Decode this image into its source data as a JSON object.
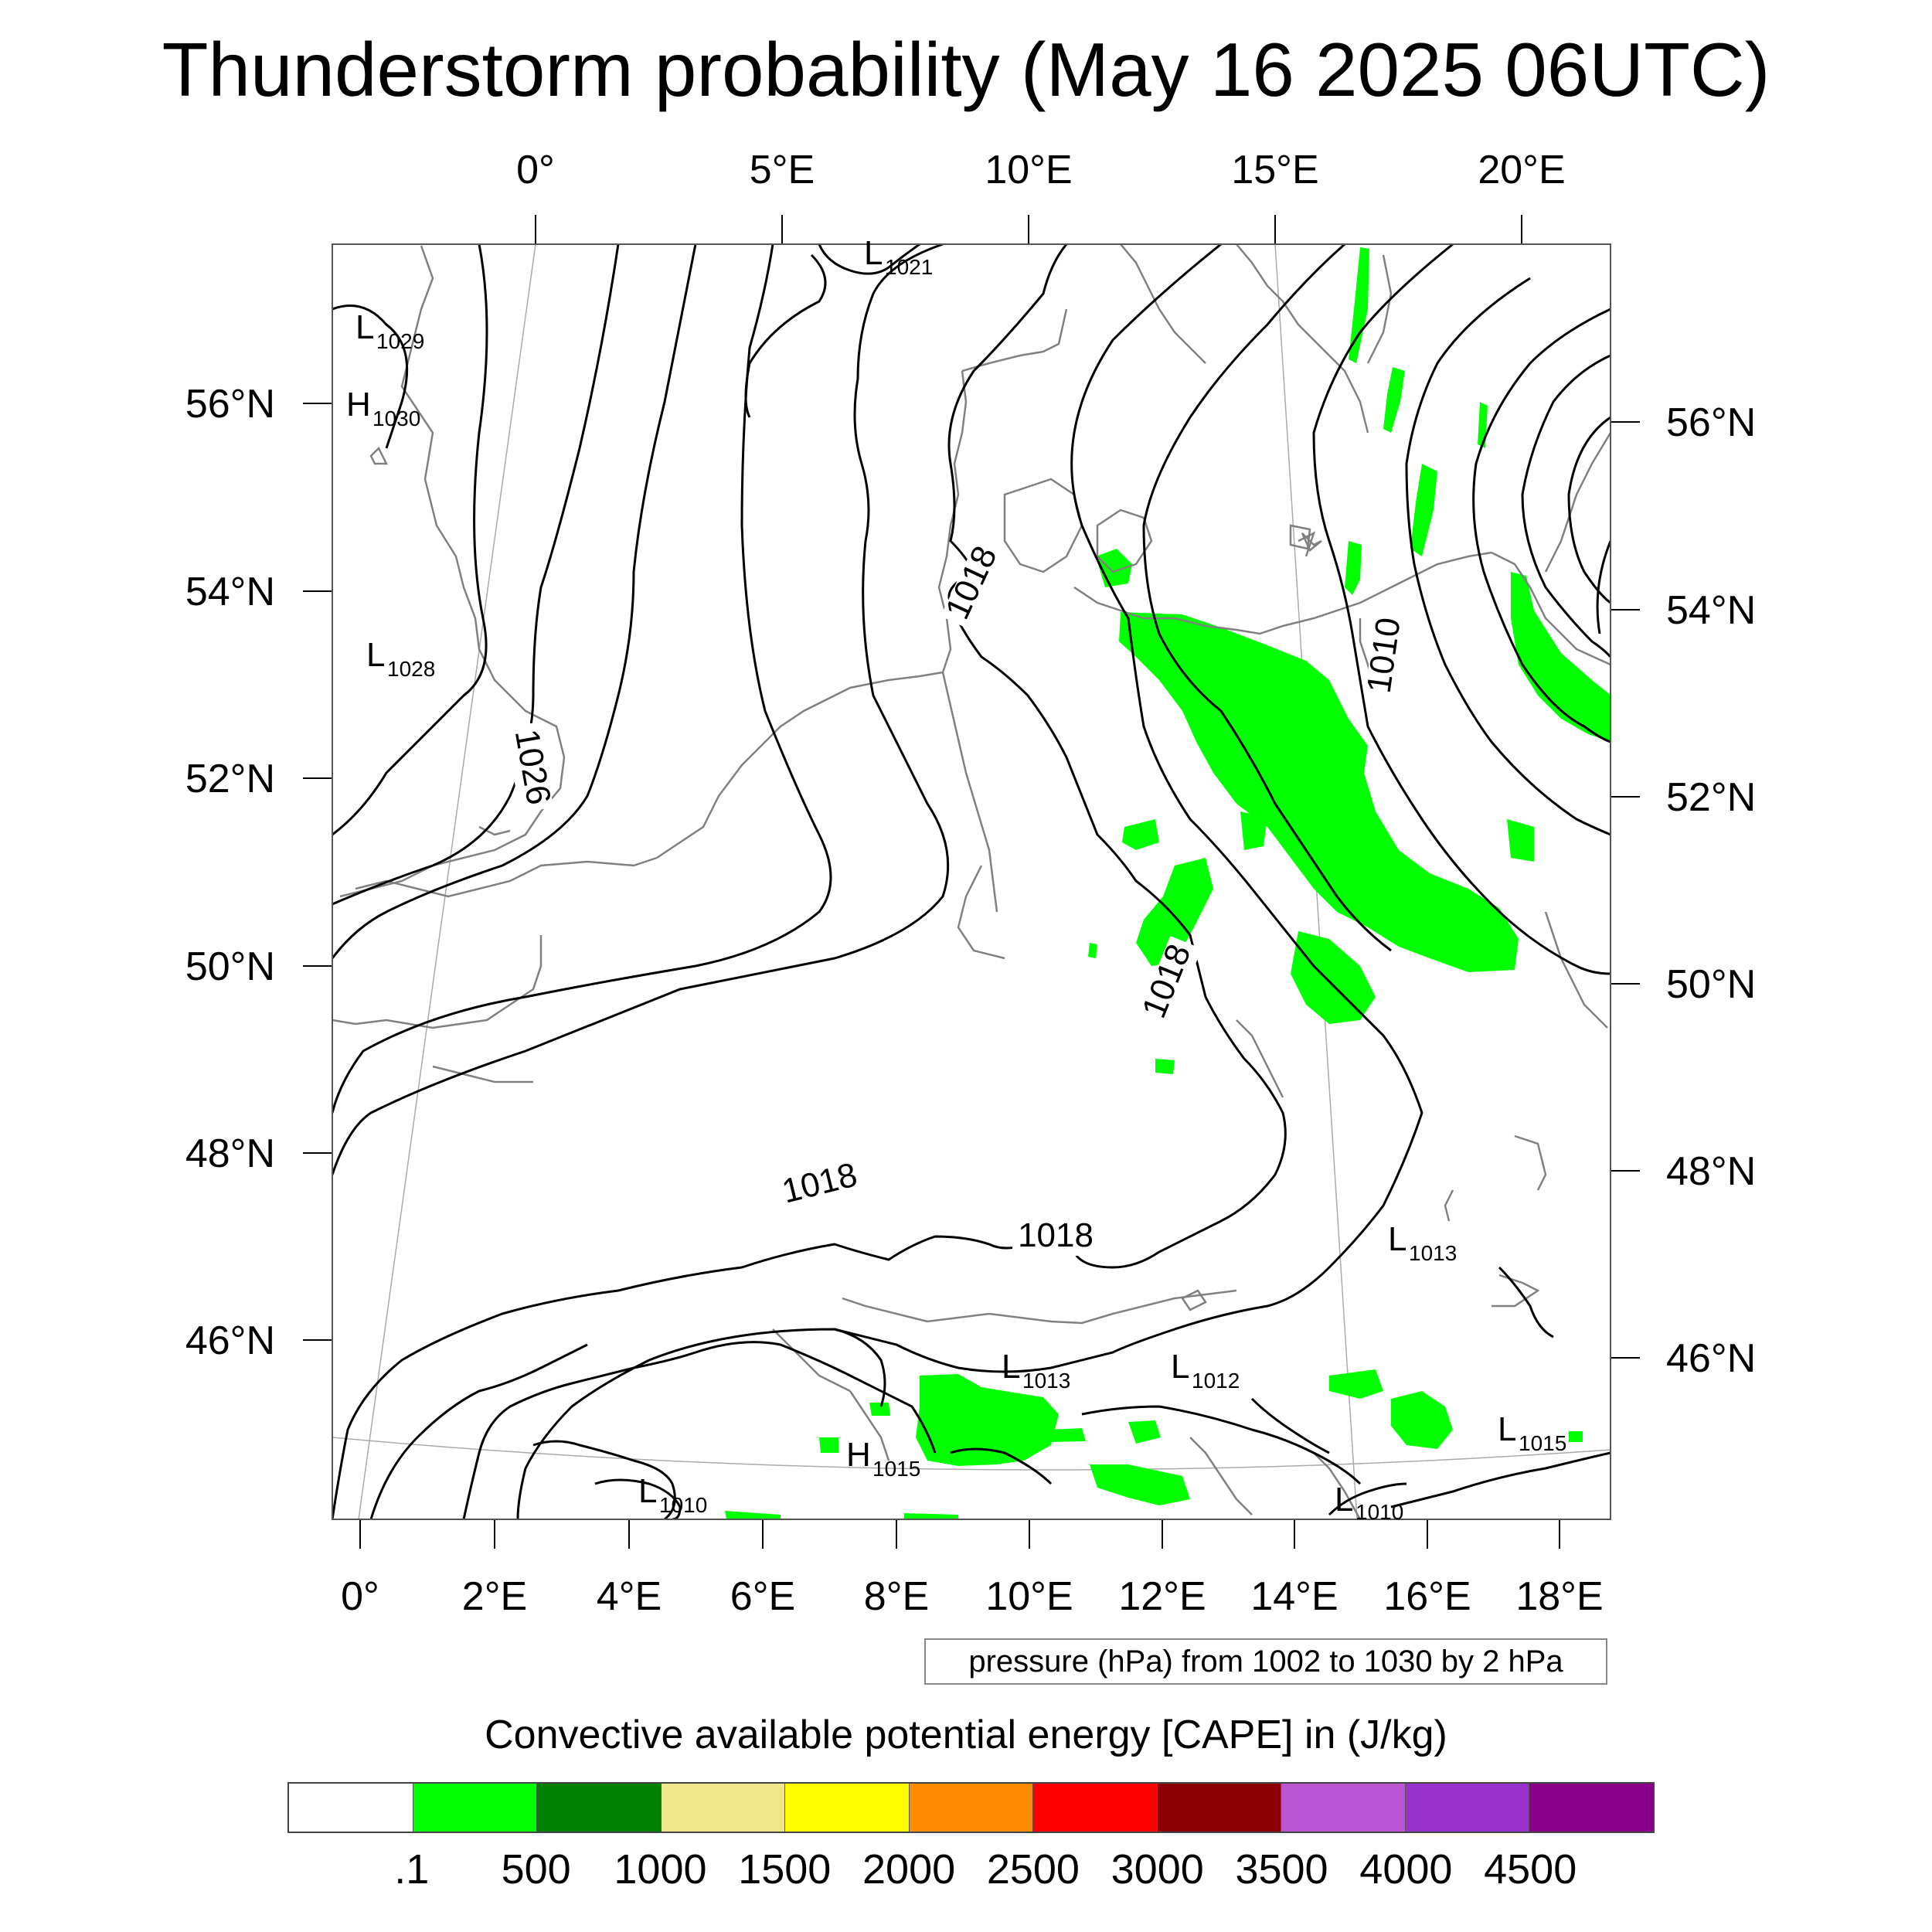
{
  "title": "Thunderstorm probability (May 16 2025 06UTC)",
  "top_lon_labels": [
    "0°",
    "5°E",
    "10°E",
    "15°E",
    "20°E"
  ],
  "bottom_lon_labels": [
    "0°",
    "2°E",
    "4°E",
    "6°E",
    "8°E",
    "10°E",
    "12°E",
    "14°E",
    "16°E",
    "18°E"
  ],
  "left_lat_labels": [
    "56°N",
    "54°N",
    "52°N",
    "50°N",
    "48°N",
    "46°N"
  ],
  "right_lat_labels": [
    "56°N",
    "54°N",
    "52°N",
    "50°N",
    "48°N",
    "46°N"
  ],
  "pressure_note": "pressure (hPa) from 1002 to 1030 by 2 hPa",
  "contour_labels": [
    {
      "text": "1026"
    },
    {
      "text": "1018"
    },
    {
      "text": "1018"
    },
    {
      "text": "1018"
    },
    {
      "text": "1018"
    },
    {
      "text": "1010"
    }
  ],
  "pressure_centers": [
    {
      "type": "L",
      "value": "1029"
    },
    {
      "type": "H",
      "value": "1030"
    },
    {
      "type": "L",
      "value": "1028"
    },
    {
      "type": "L",
      "value": "1021"
    },
    {
      "type": "L",
      "value": "1013"
    },
    {
      "type": "L",
      "value": "1013"
    },
    {
      "type": "L",
      "value": "1012"
    },
    {
      "type": "H",
      "value": "1015"
    },
    {
      "type": "L",
      "value": "1015"
    },
    {
      "type": "L",
      "value": "1010"
    },
    {
      "type": "L",
      "value": "1010"
    }
  ],
  "cape_title": "Convective available potential energy [CAPE] in (J/kg)",
  "colorbar": {
    "colors": [
      "#ffffff",
      "#00ff00",
      "#008000",
      "#f0e68c",
      "#ffff00",
      "#ff8c00",
      "#ff0000",
      "#8b0000",
      "#ba55d3",
      "#9932cc",
      "#8b008b"
    ],
    "labels": [
      ".1",
      "500",
      "1000",
      "1500",
      "2000",
      "2500",
      "3000",
      "3500",
      "4000",
      "4500"
    ]
  },
  "colors": {
    "contour": "#000000",
    "coastline": "#808080",
    "cape_green": "#00ff00"
  }
}
